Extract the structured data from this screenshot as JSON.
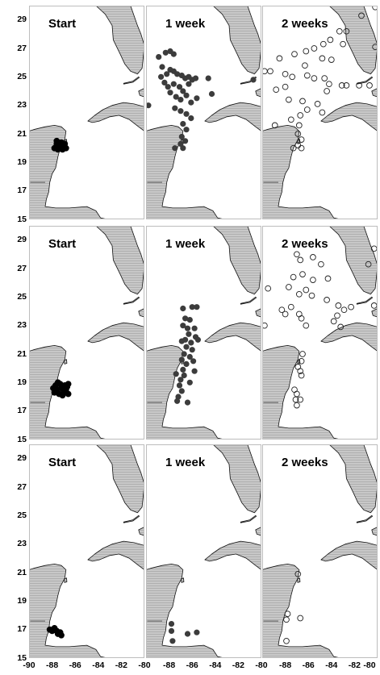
{
  "colors": {
    "land": "#c8c8c8",
    "coast": "#111111",
    "filled_marker": "#3c3c3c",
    "start_marker": "#000000",
    "open_marker_stroke": "#222222",
    "panel_border": "#bdbdbd"
  },
  "chart_data": {
    "type": "scatter",
    "description_axes": "map panels, x = longitude, y = latitude",
    "xlim": [
      -90,
      -80
    ],
    "ylim": [
      15,
      30
    ],
    "xticks": [
      "-90",
      "-88",
      "-86",
      "-84",
      "-82",
      "-80"
    ],
    "yticks": [
      "29",
      "27",
      "25",
      "23",
      "21",
      "19",
      "17",
      "15"
    ],
    "rows": [
      {
        "panels": [
          {
            "title": "Start",
            "style": "start",
            "points": [
              [
                -87.6,
                20.3
              ],
              [
                -87.4,
                20.1
              ],
              [
                -87.2,
                20.4
              ],
              [
                -87.0,
                20.2
              ],
              [
                -86.8,
                20.0
              ],
              [
                -87.8,
                20.0
              ],
              [
                -87.5,
                19.9
              ],
              [
                -86.9,
                20.3
              ],
              [
                -87.1,
                19.9
              ],
              [
                -87.6,
                20.5
              ]
            ]
          },
          {
            "title": "1 week",
            "style": "filled",
            "points": [
              [
                -89.8,
                23.0
              ],
              [
                -88.9,
                26.4
              ],
              [
                -88.6,
                25.7
              ],
              [
                -88.3,
                26.7
              ],
              [
                -87.9,
                26.8
              ],
              [
                -87.6,
                26.6
              ],
              [
                -88.7,
                25.0
              ],
              [
                -88.2,
                25.2
              ],
              [
                -87.9,
                25.5
              ],
              [
                -87.6,
                25.4
              ],
              [
                -87.3,
                25.2
              ],
              [
                -86.9,
                25.1
              ],
              [
                -86.6,
                24.9
              ],
              [
                -86.3,
                25.0
              ],
              [
                -86.0,
                24.8
              ],
              [
                -85.7,
                24.9
              ],
              [
                -88.4,
                24.6
              ],
              [
                -88.1,
                24.3
              ],
              [
                -87.6,
                24.5
              ],
              [
                -87.1,
                24.3
              ],
              [
                -86.8,
                24.0
              ],
              [
                -86.3,
                24.5
              ],
              [
                -87.9,
                23.9
              ],
              [
                -87.4,
                23.6
              ],
              [
                -87.0,
                23.4
              ],
              [
                -86.5,
                23.7
              ],
              [
                -86.1,
                23.2
              ],
              [
                -85.6,
                23.5
              ],
              [
                -87.5,
                22.8
              ],
              [
                -87.0,
                22.6
              ],
              [
                -86.5,
                22.4
              ],
              [
                -86.1,
                22.1
              ],
              [
                -86.8,
                21.7
              ],
              [
                -86.5,
                21.3
              ],
              [
                -86.9,
                20.8
              ],
              [
                -87.0,
                20.3
              ],
              [
                -86.8,
                20.0
              ],
              [
                -87.5,
                20.0
              ],
              [
                -86.6,
                20.5
              ],
              [
                -84.6,
                24.9
              ],
              [
                -84.3,
                23.8
              ],
              [
                -80.7,
                24.8
              ]
            ]
          },
          {
            "title": "2 weeks",
            "style": "open",
            "points": [
              [
                -80.2,
                29.9
              ],
              [
                -81.4,
                29.3
              ],
              [
                -80.2,
                27.1
              ],
              [
                -88.5,
                26.3
              ],
              [
                -87.2,
                26.6
              ],
              [
                -86.2,
                26.8
              ],
              [
                -85.5,
                27.0
              ],
              [
                -84.7,
                27.3
              ],
              [
                -84.1,
                27.6
              ],
              [
                -83.3,
                28.2
              ],
              [
                -82.7,
                28.2
              ],
              [
                -83.0,
                27.3
              ],
              [
                -84.0,
                26.2
              ],
              [
                -84.8,
                26.3
              ],
              [
                -86.3,
                25.8
              ],
              [
                -89.8,
                25.4
              ],
              [
                -89.3,
                25.4
              ],
              [
                -88.0,
                25.2
              ],
              [
                -87.4,
                25.0
              ],
              [
                -86.1,
                25.1
              ],
              [
                -85.5,
                24.9
              ],
              [
                -84.6,
                24.9
              ],
              [
                -84.2,
                24.5
              ],
              [
                -84.4,
                24.0
              ],
              [
                -83.1,
                24.4
              ],
              [
                -82.7,
                24.4
              ],
              [
                -81.6,
                24.4
              ],
              [
                -80.7,
                24.4
              ],
              [
                -88.8,
                24.1
              ],
              [
                -88.0,
                24.3
              ],
              [
                -87.7,
                23.4
              ],
              [
                -86.5,
                23.3
              ],
              [
                -86.1,
                22.7
              ],
              [
                -86.7,
                22.3
              ],
              [
                -85.2,
                23.1
              ],
              [
                -84.8,
                22.5
              ],
              [
                -86.8,
                21.6
              ],
              [
                -86.9,
                21.0
              ],
              [
                -86.6,
                20.6
              ],
              [
                -86.9,
                20.2
              ],
              [
                -86.6,
                20.0
              ],
              [
                -87.3,
                20.0
              ],
              [
                -88.9,
                21.6
              ],
              [
                -87.5,
                22.0
              ]
            ]
          }
        ]
      },
      {
        "panels": [
          {
            "title": "Start",
            "style": "start",
            "points": [
              [
                -87.8,
                18.3
              ],
              [
                -87.6,
                18.5
              ],
              [
                -87.4,
                18.2
              ],
              [
                -87.2,
                18.6
              ],
              [
                -87.0,
                18.3
              ],
              [
                -86.8,
                18.5
              ],
              [
                -86.6,
                18.2
              ],
              [
                -87.7,
                18.8
              ],
              [
                -87.3,
                18.9
              ],
              [
                -86.9,
                18.8
              ],
              [
                -86.6,
                18.9
              ],
              [
                -87.5,
                19.0
              ],
              [
                -87.1,
                18.1
              ],
              [
                -86.7,
                18.7
              ],
              [
                -87.9,
                18.6
              ]
            ]
          },
          {
            "title": "1 week",
            "style": "filled",
            "points": [
              [
                -86.0,
                24.3
              ],
              [
                -85.6,
                24.3
              ],
              [
                -86.8,
                24.2
              ],
              [
                -86.6,
                23.5
              ],
              [
                -86.2,
                23.4
              ],
              [
                -86.8,
                23.0
              ],
              [
                -86.4,
                22.8
              ],
              [
                -85.8,
                22.8
              ],
              [
                -86.3,
                22.4
              ],
              [
                -85.7,
                22.2
              ],
              [
                -85.5,
                22.0
              ],
              [
                -86.1,
                21.8
              ],
              [
                -86.9,
                21.9
              ],
              [
                -86.5,
                21.5
              ],
              [
                -86.0,
                21.3
              ],
              [
                -86.7,
                21.0
              ],
              [
                -86.2,
                20.8
              ],
              [
                -86.9,
                20.6
              ],
              [
                -86.5,
                20.3
              ],
              [
                -86.8,
                19.9
              ],
              [
                -86.7,
                19.5
              ],
              [
                -87.0,
                19.2
              ],
              [
                -87.1,
                18.8
              ],
              [
                -86.9,
                18.4
              ],
              [
                -87.2,
                18.0
              ],
              [
                -87.3,
                17.7
              ],
              [
                -86.4,
                17.6
              ],
              [
                -86.2,
                19.0
              ],
              [
                -85.8,
                19.8
              ],
              [
                -85.9,
                20.5
              ],
              [
                -86.6,
                22.0
              ],
              [
                -87.4,
                19.6
              ]
            ]
          },
          {
            "title": "2 weeks",
            "style": "open",
            "points": [
              [
                -80.3,
                28.4
              ],
              [
                -80.8,
                27.3
              ],
              [
                -87.0,
                28.0
              ],
              [
                -86.7,
                27.6
              ],
              [
                -85.6,
                27.8
              ],
              [
                -84.9,
                27.3
              ],
              [
                -84.3,
                26.3
              ],
              [
                -85.6,
                26.2
              ],
              [
                -86.5,
                26.6
              ],
              [
                -87.3,
                26.4
              ],
              [
                -87.7,
                25.7
              ],
              [
                -86.2,
                25.5
              ],
              [
                -86.8,
                25.2
              ],
              [
                -85.7,
                25.1
              ],
              [
                -84.4,
                24.8
              ],
              [
                -83.4,
                24.4
              ],
              [
                -82.9,
                24.1
              ],
              [
                -82.3,
                24.3
              ],
              [
                -83.5,
                23.7
              ],
              [
                -83.8,
                23.3
              ],
              [
                -83.2,
                22.9
              ],
              [
                -80.3,
                24.4
              ],
              [
                -89.5,
                25.6
              ],
              [
                -89.8,
                23.0
              ],
              [
                -88.3,
                24.1
              ],
              [
                -88.0,
                23.8
              ],
              [
                -87.5,
                24.3
              ],
              [
                -86.8,
                23.8
              ],
              [
                -86.6,
                23.5
              ],
              [
                -86.2,
                23.0
              ],
              [
                -86.5,
                21.0
              ],
              [
                -86.6,
                20.5
              ],
              [
                -86.9,
                20.1
              ],
              [
                -86.7,
                19.8
              ],
              [
                -86.6,
                19.5
              ],
              [
                -87.2,
                18.5
              ],
              [
                -87.0,
                18.2
              ],
              [
                -87.1,
                17.8
              ],
              [
                -87.0,
                17.4
              ],
              [
                -86.7,
                17.8
              ]
            ]
          }
        ]
      },
      {
        "panels": [
          {
            "title": "Start",
            "style": "start",
            "points": [
              [
                -88.2,
                17.0
              ],
              [
                -88.0,
                16.9
              ],
              [
                -87.8,
                17.1
              ],
              [
                -87.6,
                16.9
              ],
              [
                -87.3,
                16.8
              ],
              [
                -87.2,
                16.6
              ],
              [
                -87.5,
                16.7
              ]
            ]
          },
          {
            "title": "1 week",
            "style": "filled",
            "points": [
              [
                -87.8,
                17.4
              ],
              [
                -87.8,
                16.9
              ],
              [
                -87.7,
                16.2
              ],
              [
                -86.4,
                16.7
              ],
              [
                -85.6,
                16.8
              ]
            ]
          },
          {
            "title": "2 weeks",
            "style": "open",
            "points": [
              [
                -86.9,
                20.9
              ],
              [
                -86.7,
                17.8
              ],
              [
                -87.8,
                18.1
              ],
              [
                -87.9,
                17.7
              ],
              [
                -87.9,
                16.2
              ]
            ]
          }
        ]
      }
    ]
  }
}
